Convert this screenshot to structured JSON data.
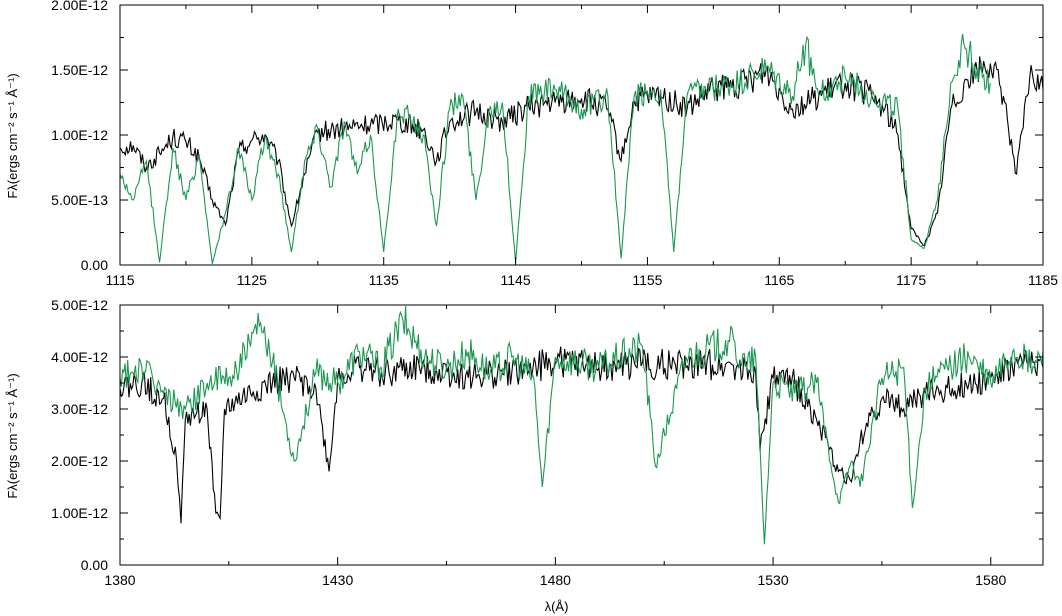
{
  "chart_data": [
    {
      "type": "line",
      "xlabel": "",
      "ylabel": "Fλ(ergs cm⁻² s⁻¹ Å⁻¹)",
      "xlim": [
        1115,
        1185
      ],
      "ylim": [
        0,
        2e-12
      ],
      "x_ticks": [
        1115,
        1125,
        1135,
        1145,
        1155,
        1165,
        1175,
        1185
      ],
      "x_tick_labels": [
        "1115",
        "1125",
        "1135",
        "1145",
        "1155",
        "1165",
        "1175",
        "1185"
      ],
      "y_ticks": [
        0,
        5e-13,
        1e-12,
        1.5e-12,
        2e-12
      ],
      "y_tick_labels": [
        "0.00",
        "5.00E-13",
        "1.00E-12",
        "1.50E-12",
        "2.00E-12"
      ],
      "series": [
        {
          "color": "#000000",
          "x": [
            1115,
            1116,
            1117,
            1118,
            1119,
            1120,
            1121,
            1122,
            1123,
            1124,
            1125,
            1126,
            1127,
            1128,
            1129,
            1130,
            1132,
            1134,
            1136,
            1138,
            1139,
            1140,
            1142,
            1144,
            1146,
            1148,
            1150,
            1152,
            1153,
            1154,
            1156,
            1158,
            1160,
            1162,
            1164,
            1166,
            1168,
            1170,
            1172,
            1173,
            1174,
            1175,
            1176,
            1177,
            1178,
            1179,
            1180,
            1181,
            1182,
            1183,
            1184,
            1185
          ],
          "values": [
            9e-13,
            9.2e-13,
            7.5e-13,
            8.6e-13,
            9.8e-13,
            9.5e-13,
            8.2e-13,
            5e-13,
            3.1e-13,
            8.8e-13,
            9.6e-13,
            1e-12,
            8e-13,
            3e-13,
            7e-13,
            1.02e-12,
            1.05e-12,
            1.08e-12,
            1.12e-12,
            1.04e-12,
            8e-13,
            1.1e-12,
            1.18e-12,
            1.1e-12,
            1.22e-12,
            1.25e-12,
            1.28e-12,
            1.2e-12,
            8e-13,
            1.26e-12,
            1.3e-12,
            1.2e-12,
            1.35e-12,
            1.38e-12,
            1.5e-12,
            1.2e-12,
            1.3e-12,
            1.4e-12,
            1.3e-12,
            1.2e-12,
            1e-12,
            2.8e-13,
            1.5e-13,
            4e-13,
            1.2e-12,
            1.4e-12,
            1.5e-12,
            1.55e-12,
            1.3e-12,
            7e-13,
            1.45e-12,
            1.35e-12
          ]
        },
        {
          "color": "#1a9850",
          "x": [
            1115,
            1116,
            1117,
            1118,
            1119,
            1120,
            1121,
            1122,
            1123,
            1124,
            1125,
            1126,
            1127,
            1128,
            1129,
            1130,
            1131,
            1132,
            1133,
            1134,
            1135,
            1136,
            1137,
            1138,
            1139,
            1140,
            1141,
            1142,
            1143,
            1144,
            1145,
            1146,
            1148,
            1150,
            1152,
            1153,
            1154,
            1156,
            1157,
            1158,
            1160,
            1162,
            1164,
            1166,
            1167,
            1168,
            1170,
            1172,
            1174,
            1175,
            1176,
            1177,
            1178,
            1179,
            1180,
            1181
          ],
          "values": [
            7e-13,
            5e-13,
            8e-13,
            2e-14,
            9e-13,
            5e-13,
            8.5e-13,
            1e-14,
            4e-13,
            9e-13,
            5e-13,
            9.8e-13,
            7e-13,
            1e-13,
            8e-13,
            1.05e-12,
            6e-13,
            1.1e-12,
            7e-13,
            1e-12,
            1e-13,
            1.12e-12,
            1.15e-12,
            1e-12,
            3e-13,
            1.2e-12,
            1.3e-12,
            5e-13,
            1.2e-12,
            1.25e-12,
            2e-14,
            1.3e-12,
            1.35e-12,
            1.2e-12,
            1.3e-12,
            5e-14,
            1.3e-12,
            1.35e-12,
            1e-13,
            1.3e-12,
            1.35e-12,
            1.4e-12,
            1.5e-12,
            1.3e-12,
            1.7e-12,
            1.3e-12,
            1.45e-12,
            1.3e-12,
            1.2e-12,
            2e-13,
            1.3e-13,
            5e-13,
            1.4e-12,
            1.7e-12,
            1.5e-12,
            1.4e-12
          ]
        }
      ]
    },
    {
      "type": "line",
      "xlabel": "λ(Å)",
      "ylabel": "Fλ(ergs cm⁻² s⁻¹ Å⁻¹)",
      "xlim": [
        1380,
        1592
      ],
      "ylim": [
        0,
        5e-12
      ],
      "x_ticks": [
        1380,
        1430,
        1480,
        1530,
        1580
      ],
      "x_tick_labels": [
        "1380",
        "1430",
        "1480",
        "1530",
        "1580"
      ],
      "y_ticks": [
        0,
        1e-12,
        2e-12,
        3e-12,
        4e-12,
        5e-12
      ],
      "y_tick_labels": [
        "0.00",
        "1.00E-12",
        "2.00E-12",
        "3.00E-12",
        "4.00E-12",
        "5.00E-12"
      ],
      "series": [
        {
          "color": "#000000",
          "x": [
            1380,
            1385,
            1390,
            1393,
            1394,
            1395,
            1400,
            1402,
            1403,
            1404,
            1410,
            1415,
            1420,
            1425,
            1428,
            1430,
            1435,
            1440,
            1450,
            1460,
            1470,
            1480,
            1490,
            1500,
            1510,
            1520,
            1526,
            1527,
            1530,
            1535,
            1540,
            1545,
            1548,
            1550,
            1555,
            1560,
            1565,
            1570,
            1575,
            1580,
            1585,
            1590,
            1592
          ],
          "values": [
            3.4e-12,
            3.5e-12,
            3.2e-12,
            2e-12,
            8e-13,
            2.8e-12,
            3e-12,
            1e-12,
            9e-13,
            3e-12,
            3.3e-12,
            3.5e-12,
            3.6e-12,
            3.4e-12,
            1.8e-12,
            3.6e-12,
            3.8e-12,
            3.7e-12,
            3.8e-12,
            3.6e-12,
            3.7e-12,
            3.9e-12,
            3.8e-12,
            3.9e-12,
            3.8e-12,
            3.9e-12,
            3.7e-12,
            2.2e-12,
            3.6e-12,
            3.5e-12,
            2.8e-12,
            1.8e-12,
            1.6e-12,
            2.4e-12,
            3.2e-12,
            3e-12,
            3.3e-12,
            3.4e-12,
            3.5e-12,
            3.6e-12,
            3.8e-12,
            3.9e-12,
            3.8e-12
          ]
        },
        {
          "color": "#1a9850",
          "x": [
            1380,
            1385,
            1390,
            1395,
            1400,
            1405,
            1410,
            1412,
            1415,
            1420,
            1425,
            1430,
            1435,
            1440,
            1445,
            1450,
            1455,
            1460,
            1465,
            1470,
            1475,
            1477,
            1480,
            1490,
            1500,
            1503,
            1510,
            1520,
            1524,
            1526,
            1528,
            1530,
            1535,
            1540,
            1545,
            1548,
            1550,
            1555,
            1560,
            1562,
            1565,
            1570,
            1575,
            1580,
            1585,
            1590,
            1592
          ],
          "values": [
            3.6e-12,
            3.8e-12,
            3.3e-12,
            3e-12,
            3.5e-12,
            3.6e-12,
            4.2e-12,
            4.6e-12,
            3.9e-12,
            2e-12,
            3.7e-12,
            3.5e-12,
            4.1e-12,
            3.8e-12,
            4.7e-12,
            4e-12,
            3.8e-12,
            4.1e-12,
            3.7e-12,
            4e-12,
            3.6e-12,
            1.5e-12,
            4e-12,
            3.8e-12,
            4.2e-12,
            1.9e-12,
            4e-12,
            4.3e-12,
            3.8e-12,
            4e-12,
            4e-13,
            3.5e-12,
            3.3e-12,
            3.5e-12,
            1.2e-12,
            2e-12,
            1.5e-12,
            3.6e-12,
            3.8e-12,
            1.1e-12,
            3.4e-12,
            3.8e-12,
            4e-12,
            3.5e-12,
            4.1e-12,
            3.8e-12,
            4.1e-12
          ]
        }
      ]
    }
  ]
}
